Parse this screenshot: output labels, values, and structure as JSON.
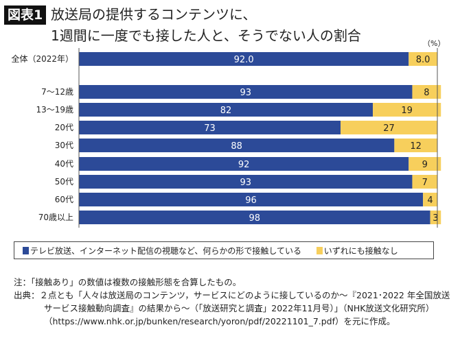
{
  "figure_label": "図表1",
  "title_line1": "放送局の提供するコンテンツに、",
  "title_line2": "1週間に一度でも接した人と、そうでない人の割合",
  "unit": "（%）",
  "chart_data": {
    "type": "bar",
    "orientation": "horizontal-stacked-100",
    "categories": [
      "全体（2022年）",
      "7～12歳",
      "13～19歳",
      "20代",
      "30代",
      "40代",
      "50代",
      "60代",
      "70歳以上"
    ],
    "series": [
      {
        "name": "テレビ放送、インターネット配信の視聴など、何らかの形で接触している",
        "color": "#2c4a98",
        "values": [
          92.0,
          93,
          82,
          73,
          88,
          92,
          93,
          96,
          98
        ],
        "labels": [
          "92.0",
          "93",
          "82",
          "73",
          "88",
          "92",
          "93",
          "96",
          "98"
        ]
      },
      {
        "name": "いずれにも接触なし",
        "color": "#f7cf5c",
        "values": [
          8.0,
          8,
          19,
          27,
          12,
          9,
          7,
          4,
          3
        ],
        "labels": [
          "8.0",
          "8",
          "19",
          "27",
          "12",
          "9",
          "7",
          "4",
          "3"
        ]
      }
    ],
    "xlim": [
      0,
      100
    ],
    "legend": "bottom"
  },
  "note": "注：「接触あり」の数値は複数の接触形態を合算したもの。",
  "source": "出典：２点とも「人々は放送局のコンテンツ，サービスにどのように接しているのか～『2021･2022 年全国放送サービス接触動向調査』の結果から～（「放送研究と調査」2022年11月号）」（NHK放送文化研究所）（https://www.nhk.or.jp/bunken/research/yoron/pdf/20221101_7.pdf）を元に作成。"
}
